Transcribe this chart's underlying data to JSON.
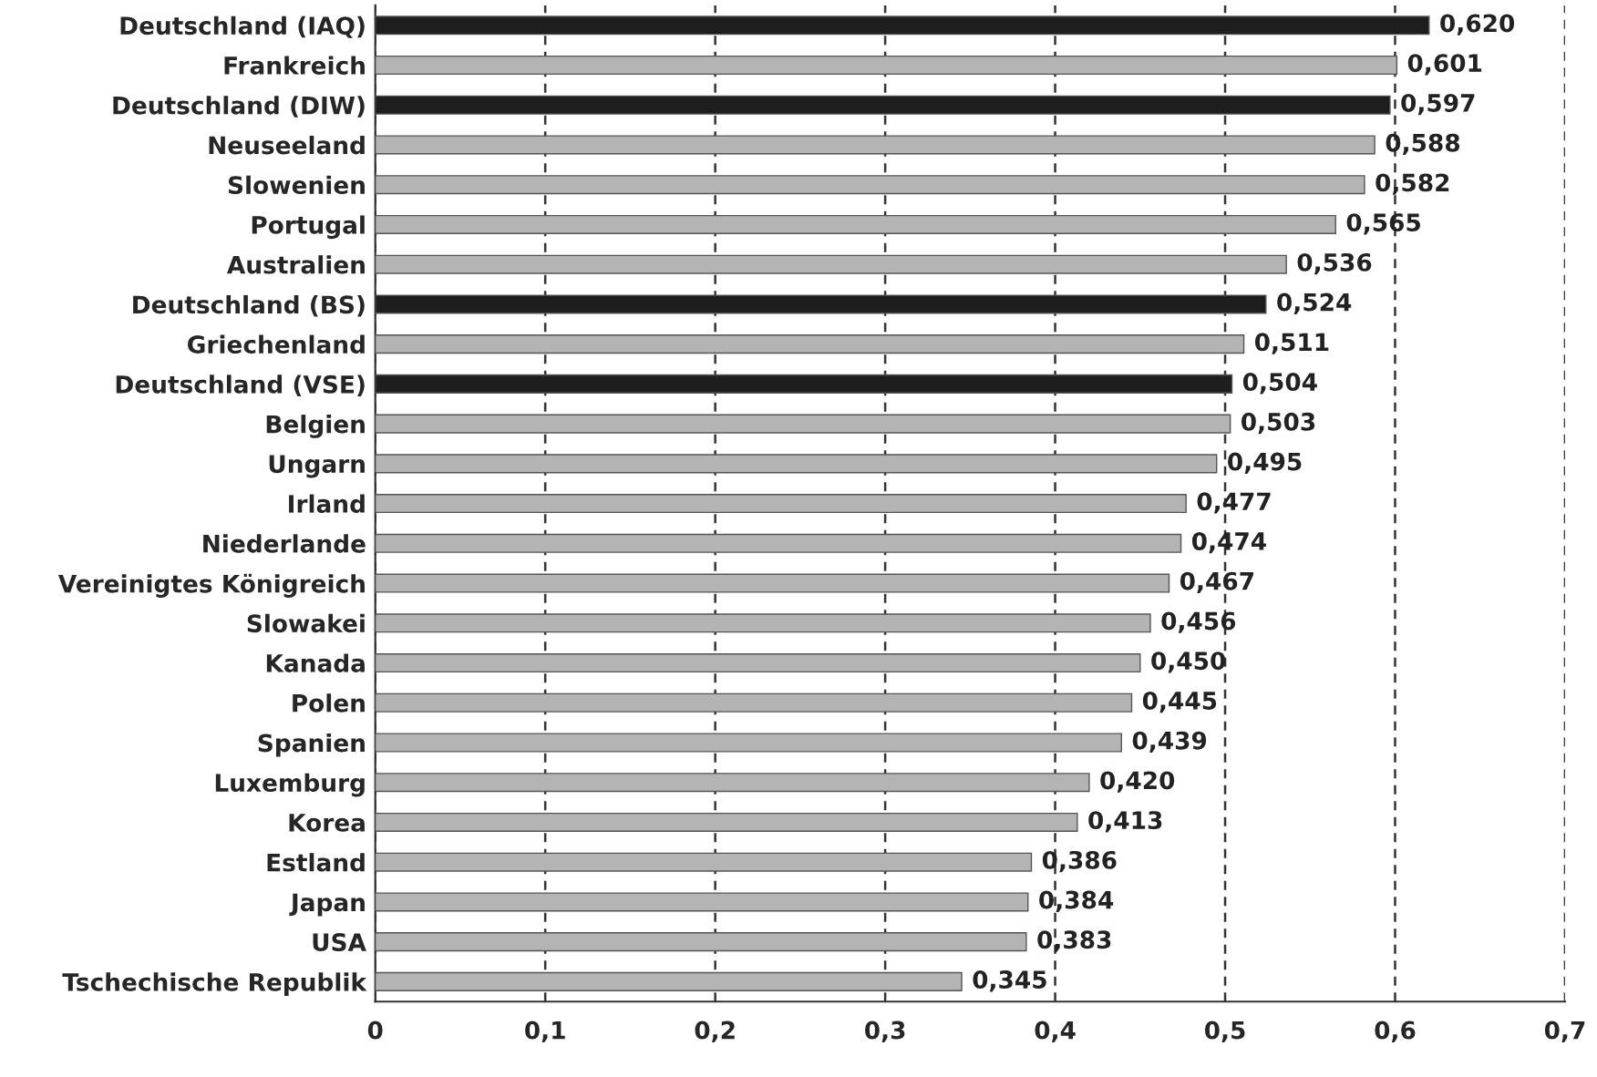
{
  "chart_data": {
    "type": "bar",
    "orientation": "horizontal",
    "categories": [
      "Deutschland (IAQ)",
      "Frankreich",
      "Deutschland (DIW)",
      "Neuseeland",
      "Slowenien",
      "Portugal",
      "Australien",
      "Deutschland (BS)",
      "Griechenland",
      "Deutschland (VSE)",
      "Belgien",
      "Ungarn",
      "Irland",
      "Niederlande",
      "Vereinigtes Königreich",
      "Slowakei",
      "Kanada",
      "Polen",
      "Spanien",
      "Luxemburg",
      "Korea",
      "Estland",
      "Japan",
      "USA",
      "Tschechische Republik"
    ],
    "values": [
      0.62,
      0.601,
      0.597,
      0.588,
      0.582,
      0.565,
      0.536,
      0.524,
      0.511,
      0.504,
      0.503,
      0.495,
      0.477,
      0.474,
      0.467,
      0.456,
      0.45,
      0.445,
      0.439,
      0.42,
      0.413,
      0.386,
      0.384,
      0.383,
      0.345
    ],
    "value_labels": [
      "0,620",
      "0,601",
      "0,597",
      "0,588",
      "0,582",
      "0,565",
      "0,536",
      "0,524",
      "0,511",
      "0,504",
      "0,503",
      "0,495",
      "0,477",
      "0,474",
      "0,467",
      "0,456",
      "0,450",
      "0,445",
      "0,439",
      "0,420",
      "0,413",
      "0,386",
      "0,384",
      "0,383",
      "0,345"
    ],
    "colors": [
      "#1e1e1e",
      "#b4b4b4",
      "#1e1e1e",
      "#b4b4b4",
      "#b4b4b4",
      "#b4b4b4",
      "#b4b4b4",
      "#1e1e1e",
      "#b4b4b4",
      "#1e1e1e",
      "#b4b4b4",
      "#b4b4b4",
      "#b4b4b4",
      "#b4b4b4",
      "#b4b4b4",
      "#b4b4b4",
      "#b4b4b4",
      "#b4b4b4",
      "#b4b4b4",
      "#b4b4b4",
      "#b4b4b4",
      "#b4b4b4",
      "#b4b4b4",
      "#b4b4b4",
      "#b4b4b4"
    ],
    "xlim": [
      0,
      0.7
    ],
    "xticks": [
      0,
      {
        "value": 0.1,
        "label": "0,1"
      },
      {
        "value": 0.2,
        "label": "0,2"
      },
      {
        "value": 0.3,
        "label": "0,3"
      },
      {
        "value": 0.4,
        "label": "0,4"
      },
      {
        "value": 0.5,
        "label": "0,5"
      },
      {
        "value": 0.6,
        "label": "0,6"
      },
      {
        "value": 0.7,
        "label": "0,7"
      }
    ],
    "grid": "x"
  }
}
